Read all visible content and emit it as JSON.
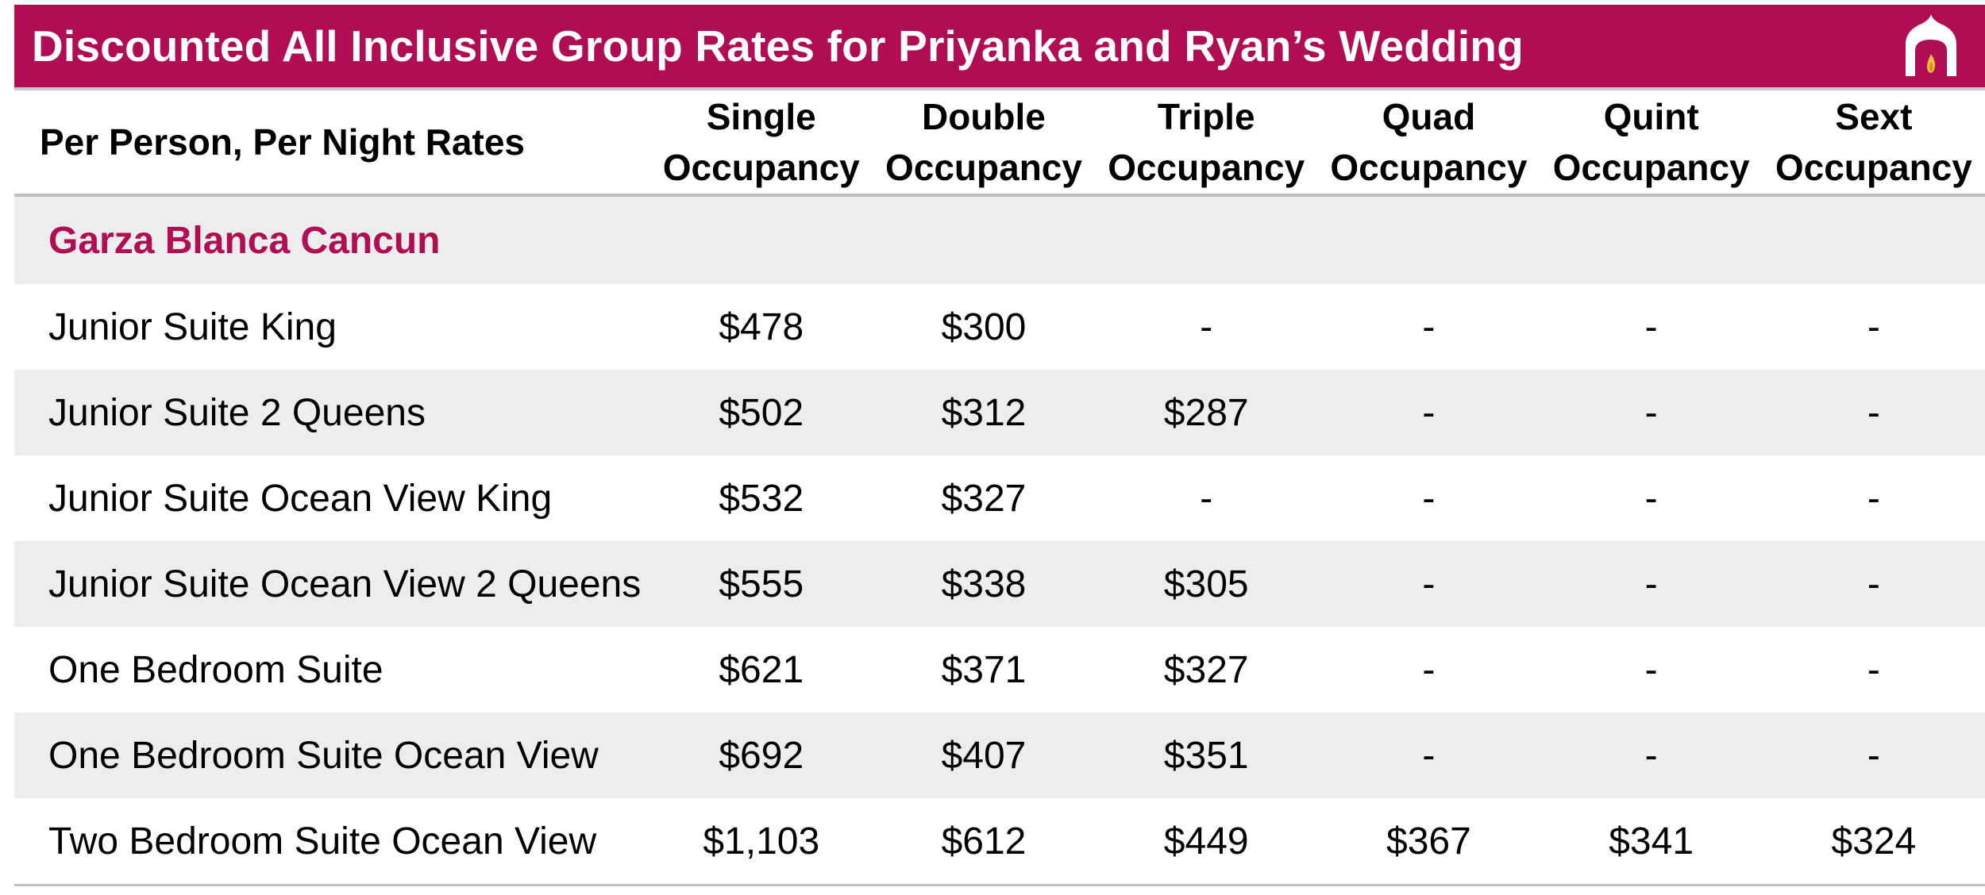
{
  "title": "Discounted All Inclusive Group Rates for Priyanka and Ryan’s Wedding",
  "colors": {
    "brand": "#b00d54",
    "row_alt": "#ededed",
    "rule": "#bfbfbf",
    "logo_flame": "#f2c23c"
  },
  "logo_icon": "pavilion-flame-icon",
  "header": {
    "rate_label": "Per Person, Per Night Rates",
    "columns": [
      {
        "line1": "Single",
        "line2": "Occupancy"
      },
      {
        "line1": "Double",
        "line2": "Occupancy"
      },
      {
        "line1": "Triple",
        "line2": "Occupancy"
      },
      {
        "line1": "Quad",
        "line2": "Occupancy"
      },
      {
        "line1": "Quint",
        "line2": "Occupancy"
      },
      {
        "line1": "Sext",
        "line2": "Occupancy"
      }
    ]
  },
  "section": "Garza Blanca Cancun",
  "rows": [
    {
      "name": "Junior Suite King",
      "prices": [
        "$478",
        "$300",
        "-",
        "-",
        "-",
        "-"
      ]
    },
    {
      "name": "Junior Suite 2 Queens",
      "prices": [
        "$502",
        "$312",
        "$287",
        "-",
        "-",
        "-"
      ]
    },
    {
      "name": "Junior Suite Ocean View King",
      "prices": [
        "$532",
        "$327",
        "-",
        "-",
        "-",
        "-"
      ]
    },
    {
      "name": "Junior Suite Ocean View 2 Queens",
      "prices": [
        "$555",
        "$338",
        "$305",
        "-",
        "-",
        "-"
      ]
    },
    {
      "name": "One Bedroom Suite",
      "prices": [
        "$621",
        "$371",
        "$327",
        "-",
        "-",
        "-"
      ]
    },
    {
      "name": "One Bedroom Suite Ocean View",
      "prices": [
        "$692",
        "$407",
        "$351",
        "-",
        "-",
        "-"
      ]
    },
    {
      "name": "Two Bedroom Suite Ocean View",
      "prices": [
        "$1,103",
        "$612",
        "$449",
        "$367",
        "$341",
        "$324"
      ]
    }
  ]
}
